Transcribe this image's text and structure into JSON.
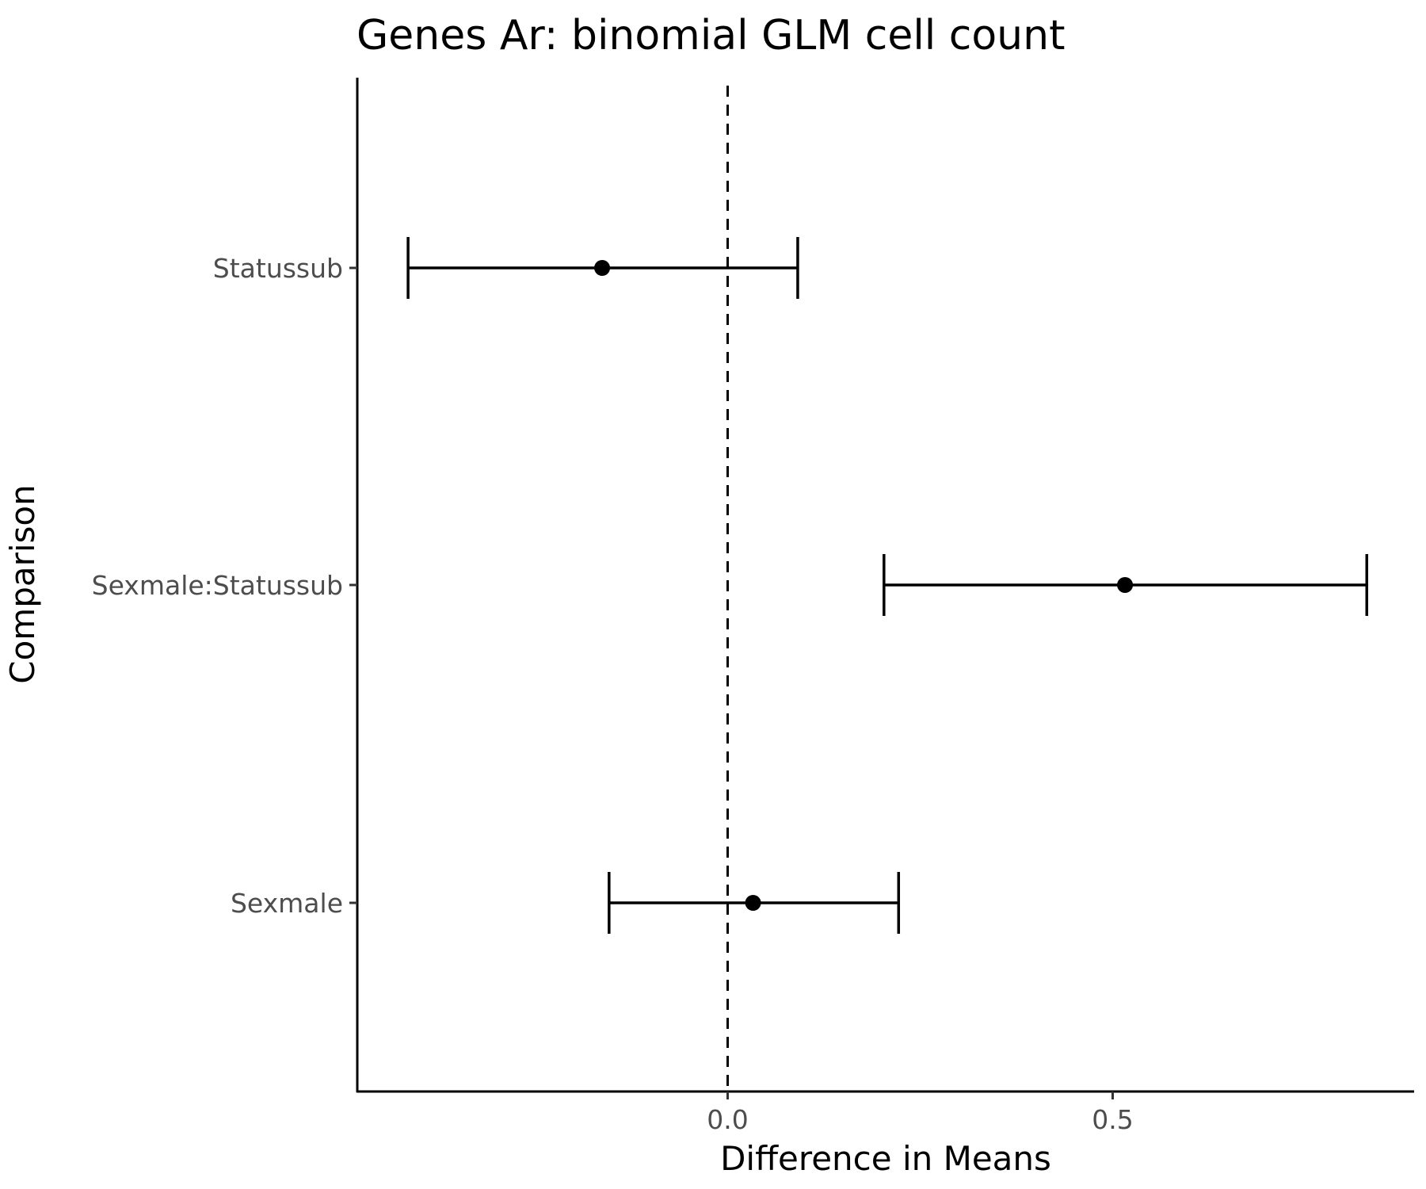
{
  "chart_data": {
    "type": "forest",
    "title": "Genes Ar: binomial GLM cell count",
    "xlabel": "Difference in Means",
    "ylabel": "Comparison",
    "x_ticks": [
      0.0,
      0.5
    ],
    "x_tick_labels": [
      "0.0",
      "0.5"
    ],
    "xlim": [
      -0.477,
      0.89
    ],
    "reference_line_x": 0.0,
    "grid": false,
    "categories": [
      "Statussub",
      "Sexmale:Statussub",
      "Sexmale"
    ],
    "estimates": [
      {
        "label": "Statussub",
        "estimate": -0.163,
        "lower": -0.415,
        "upper": 0.091
      },
      {
        "label": "Sexmale:Statussub",
        "estimate": 0.516,
        "lower": 0.203,
        "upper": 0.83
      },
      {
        "label": "Sexmale",
        "estimate": 0.033,
        "lower": -0.154,
        "upper": 0.222
      }
    ]
  }
}
